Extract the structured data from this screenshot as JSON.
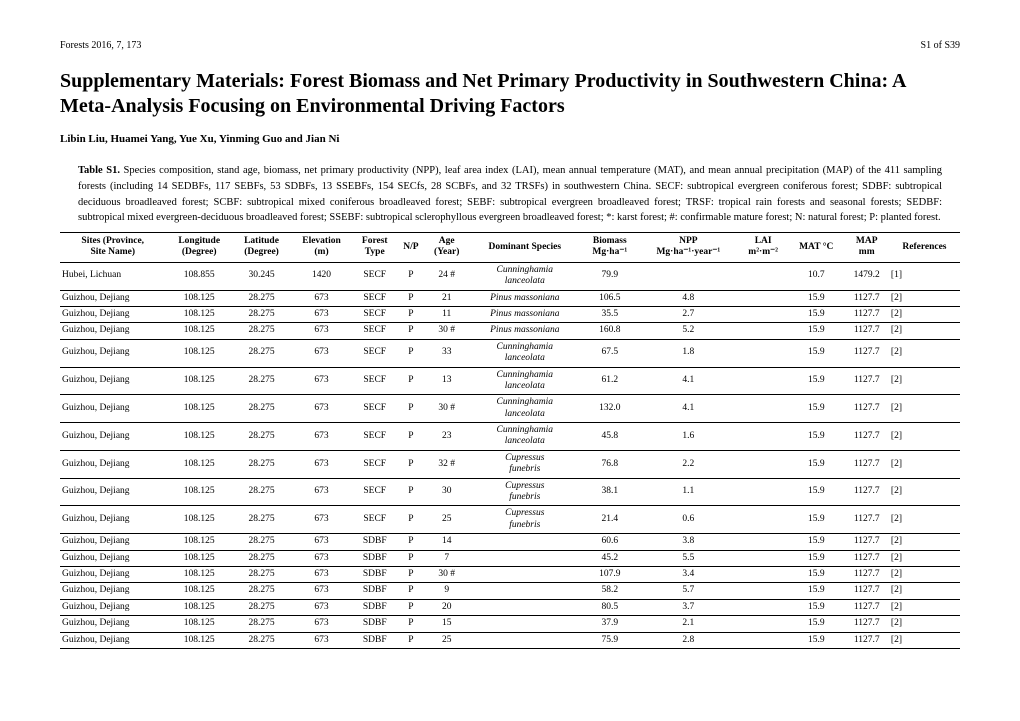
{
  "header": {
    "journal": "Forests 2016, 7, 173",
    "page": "S1 of S39"
  },
  "title": "Supplementary Materials: Forest Biomass and Net Primary Productivity in Southwestern China: A Meta-Analysis Focusing on Environmental Driving Factors",
  "authors": "Libin Liu, Huamei Yang, Yue Xu, Yinming Guo and Jian Ni",
  "caption_label": "Table S1.",
  "caption": " Species composition, stand age, biomass, net primary productivity (NPP), leaf area index (LAI), mean annual temperature (MAT), and mean annual precipitation (MAP) of the 411 sampling forests (including 14 SEDBFs, 117 SEBFs, 53 SDBFs, 13 SSEBFs, 154 SECfs, 28 SCBFs, and 32 TRSFs) in southwestern China. SECF: subtropical evergreen coniferous forest; SDBF: subtropical deciduous broadleaved forest; SCBF: subtropical mixed coniferous broadleaved forest; SEBF: subtropical evergreen broadleaved forest; TRSF: tropical rain forests and seasonal forests; SEDBF: subtropical mixed evergreen-deciduous broadleaved forest; SSEBF: subtropical sclerophyllous evergreen broadleaved forest; *: karst forest; #: confirmable mature forest; N: natural forest; P: planted forest.",
  "columns": {
    "site_l1": "Sites (Province,",
    "site_l2": "Site Name)",
    "lon_l1": "Longitude",
    "lon_l2": "(Degree)",
    "lat_l1": "Latitude",
    "lat_l2": "(Degree)",
    "elev_l1": "Elevation",
    "elev_l2": "(m)",
    "ftype_l1": "Forest",
    "ftype_l2": "Type",
    "np": "N/P",
    "age_l1": "Age",
    "age_l2": "(Year)",
    "species": "Dominant Species",
    "biomass_l1": "Biomass",
    "biomass_l2": "Mg·ha⁻¹",
    "npp_l1": "NPP",
    "npp_l2": "Mg·ha⁻¹·year⁻¹",
    "lai_l1": "LAI",
    "lai_l2": "m²·m⁻²",
    "mat": "MAT °C",
    "map_l1": "MAP",
    "map_l2": "mm",
    "ref": "References"
  },
  "rows": [
    {
      "site": "Hubei, Lichuan",
      "lon": "108.855",
      "lat": "30.245",
      "elev": "1420",
      "ftype": "SECF",
      "np": "P",
      "age": "24 #",
      "species": "Cunninghamia lanceolata",
      "biomass": "79.9",
      "npp": "",
      "lai": "",
      "mat": "10.7",
      "map": "1479.2",
      "ref": "[1]"
    },
    {
      "site": "Guizhou, Dejiang",
      "lon": "108.125",
      "lat": "28.275",
      "elev": "673",
      "ftype": "SECF",
      "np": "P",
      "age": "21",
      "species": "Pinus massoniana",
      "biomass": "106.5",
      "npp": "4.8",
      "lai": "",
      "mat": "15.9",
      "map": "1127.7",
      "ref": "[2]"
    },
    {
      "site": "Guizhou, Dejiang",
      "lon": "108.125",
      "lat": "28.275",
      "elev": "673",
      "ftype": "SECF",
      "np": "P",
      "age": "11",
      "species": "Pinus massoniana",
      "biomass": "35.5",
      "npp": "2.7",
      "lai": "",
      "mat": "15.9",
      "map": "1127.7",
      "ref": "[2]"
    },
    {
      "site": "Guizhou, Dejiang",
      "lon": "108.125",
      "lat": "28.275",
      "elev": "673",
      "ftype": "SECF",
      "np": "P",
      "age": "30 #",
      "species": "Pinus massoniana",
      "biomass": "160.8",
      "npp": "5.2",
      "lai": "",
      "mat": "15.9",
      "map": "1127.7",
      "ref": "[2]"
    },
    {
      "site": "Guizhou, Dejiang",
      "lon": "108.125",
      "lat": "28.275",
      "elev": "673",
      "ftype": "SECF",
      "np": "P",
      "age": "33",
      "species": "Cunninghamia lanceolata",
      "biomass": "67.5",
      "npp": "1.8",
      "lai": "",
      "mat": "15.9",
      "map": "1127.7",
      "ref": "[2]"
    },
    {
      "site": "Guizhou, Dejiang",
      "lon": "108.125",
      "lat": "28.275",
      "elev": "673",
      "ftype": "SECF",
      "np": "P",
      "age": "13",
      "species": "Cunninghamia lanceolata",
      "biomass": "61.2",
      "npp": "4.1",
      "lai": "",
      "mat": "15.9",
      "map": "1127.7",
      "ref": "[2]"
    },
    {
      "site": "Guizhou, Dejiang",
      "lon": "108.125",
      "lat": "28.275",
      "elev": "673",
      "ftype": "SECF",
      "np": "P",
      "age": "30 #",
      "species": "Cunninghamia lanceolata",
      "biomass": "132.0",
      "npp": "4.1",
      "lai": "",
      "mat": "15.9",
      "map": "1127.7",
      "ref": "[2]"
    },
    {
      "site": "Guizhou, Dejiang",
      "lon": "108.125",
      "lat": "28.275",
      "elev": "673",
      "ftype": "SECF",
      "np": "P",
      "age": "23",
      "species": "Cunninghamia lanceolata",
      "biomass": "45.8",
      "npp": "1.6",
      "lai": "",
      "mat": "15.9",
      "map": "1127.7",
      "ref": "[2]"
    },
    {
      "site": "Guizhou, Dejiang",
      "lon": "108.125",
      "lat": "28.275",
      "elev": "673",
      "ftype": "SECF",
      "np": "P",
      "age": "32 #",
      "species": "Cupressus funebris",
      "biomass": "76.8",
      "npp": "2.2",
      "lai": "",
      "mat": "15.9",
      "map": "1127.7",
      "ref": "[2]"
    },
    {
      "site": "Guizhou, Dejiang",
      "lon": "108.125",
      "lat": "28.275",
      "elev": "673",
      "ftype": "SECF",
      "np": "P",
      "age": "30",
      "species": "Cupressus funebris",
      "biomass": "38.1",
      "npp": "1.1",
      "lai": "",
      "mat": "15.9",
      "map": "1127.7",
      "ref": "[2]"
    },
    {
      "site": "Guizhou, Dejiang",
      "lon": "108.125",
      "lat": "28.275",
      "elev": "673",
      "ftype": "SECF",
      "np": "P",
      "age": "25",
      "species": "Cupressus funebris",
      "biomass": "21.4",
      "npp": "0.6",
      "lai": "",
      "mat": "15.9",
      "map": "1127.7",
      "ref": "[2]"
    },
    {
      "site": "Guizhou, Dejiang",
      "lon": "108.125",
      "lat": "28.275",
      "elev": "673",
      "ftype": "SDBF",
      "np": "P",
      "age": "14",
      "species": "",
      "biomass": "60.6",
      "npp": "3.8",
      "lai": "",
      "mat": "15.9",
      "map": "1127.7",
      "ref": "[2]"
    },
    {
      "site": "Guizhou, Dejiang",
      "lon": "108.125",
      "lat": "28.275",
      "elev": "673",
      "ftype": "SDBF",
      "np": "P",
      "age": "7",
      "species": "",
      "biomass": "45.2",
      "npp": "5.5",
      "lai": "",
      "mat": "15.9",
      "map": "1127.7",
      "ref": "[2]"
    },
    {
      "site": "Guizhou, Dejiang",
      "lon": "108.125",
      "lat": "28.275",
      "elev": "673",
      "ftype": "SDBF",
      "np": "P",
      "age": "30 #",
      "species": "",
      "biomass": "107.9",
      "npp": "3.4",
      "lai": "",
      "mat": "15.9",
      "map": "1127.7",
      "ref": "[2]"
    },
    {
      "site": "Guizhou, Dejiang",
      "lon": "108.125",
      "lat": "28.275",
      "elev": "673",
      "ftype": "SDBF",
      "np": "P",
      "age": "9",
      "species": "",
      "biomass": "58.2",
      "npp": "5.7",
      "lai": "",
      "mat": "15.9",
      "map": "1127.7",
      "ref": "[2]"
    },
    {
      "site": "Guizhou, Dejiang",
      "lon": "108.125",
      "lat": "28.275",
      "elev": "673",
      "ftype": "SDBF",
      "np": "P",
      "age": "20",
      "species": "",
      "biomass": "80.5",
      "npp": "3.7",
      "lai": "",
      "mat": "15.9",
      "map": "1127.7",
      "ref": "[2]"
    },
    {
      "site": "Guizhou, Dejiang",
      "lon": "108.125",
      "lat": "28.275",
      "elev": "673",
      "ftype": "SDBF",
      "np": "P",
      "age": "15",
      "species": "",
      "biomass": "37.9",
      "npp": "2.1",
      "lai": "",
      "mat": "15.9",
      "map": "1127.7",
      "ref": "[2]"
    },
    {
      "site": "Guizhou, Dejiang",
      "lon": "108.125",
      "lat": "28.275",
      "elev": "673",
      "ftype": "SDBF",
      "np": "P",
      "age": "25",
      "species": "",
      "biomass": "75.9",
      "npp": "2.8",
      "lai": "",
      "mat": "15.9",
      "map": "1127.7",
      "ref": "[2]"
    }
  ]
}
